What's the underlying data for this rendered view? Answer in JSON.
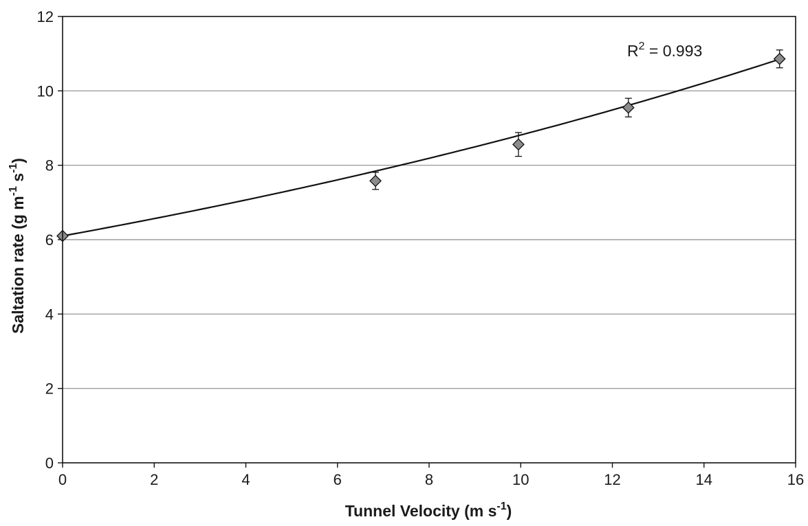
{
  "chart_data": {
    "type": "scatter",
    "xlabel": "Tunnel Velocity (m s",
    "xlabel_sup": "-1",
    "xlabel_tail": ")",
    "ylabel": "Saltation rate (g m",
    "ylabel_sup1": "-1",
    "ylabel_mid": " s",
    "ylabel_sup2": "-1",
    "ylabel_tail": ")",
    "xlim": [
      0,
      16
    ],
    "ylim": [
      0,
      12
    ],
    "x_ticks": [
      "0",
      "2",
      "4",
      "6",
      "8",
      "10",
      "12",
      "14",
      "16"
    ],
    "y_ticks": [
      "0",
      "2",
      "4",
      "6",
      "8",
      "10",
      "12"
    ],
    "gridlines": "horizontal",
    "series": [
      {
        "marker": "diamond",
        "marker_color": "#8c8c8c",
        "points": [
          {
            "x": 0,
            "y": 6.1,
            "err": 0
          },
          {
            "x": 6.83,
            "y": 7.58,
            "err": 0.23
          },
          {
            "x": 9.95,
            "y": 8.56,
            "err": 0.32
          },
          {
            "x": 12.35,
            "y": 9.55,
            "err": 0.25
          },
          {
            "x": 15.65,
            "y": 10.86,
            "err": 0.24
          }
        ]
      }
    ],
    "trendline": {
      "type": "exponential",
      "a": 6.1,
      "b": 0.0368,
      "x_range": [
        0,
        15.7
      ],
      "color": "#111111"
    },
    "annotation": {
      "prefix": "R",
      "sup": "2",
      "suffix": " = 0.993"
    }
  }
}
